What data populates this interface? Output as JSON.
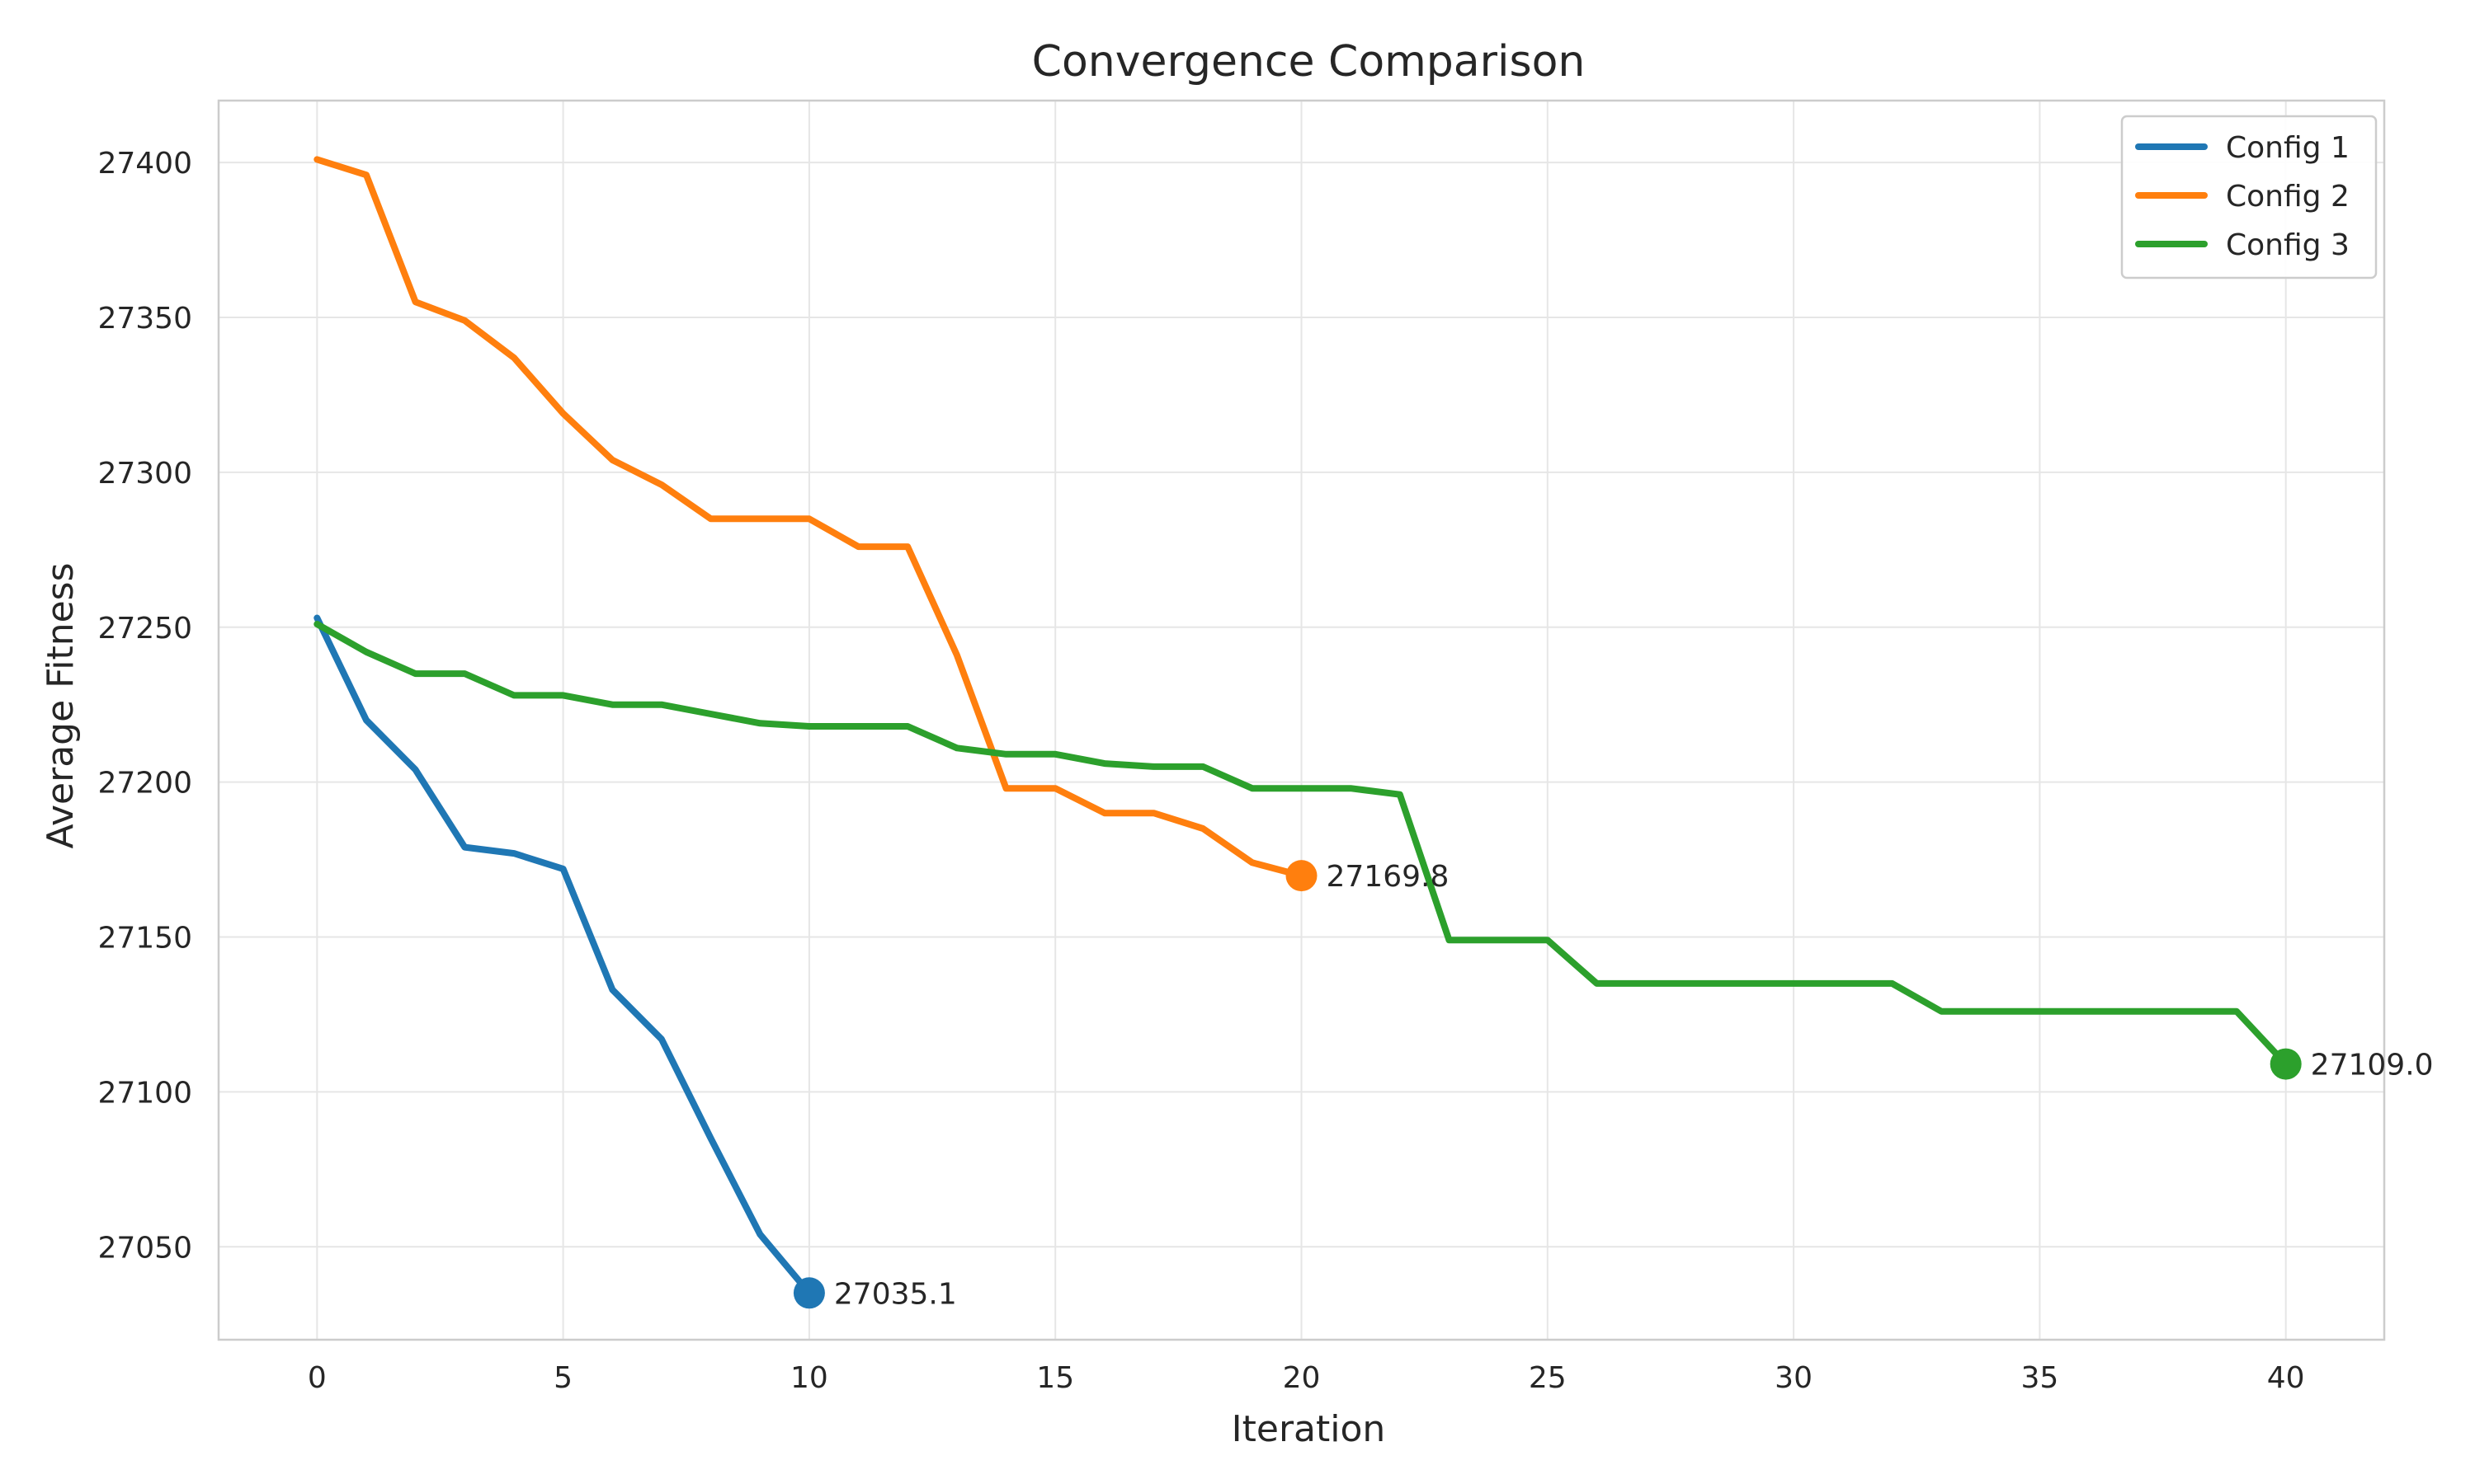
{
  "chart_data": {
    "type": "line",
    "title": "Convergence Comparison",
    "xlabel": "Iteration",
    "ylabel": "Average Fitness",
    "xlim": [
      -2,
      42
    ],
    "ylim": [
      27020,
      27420
    ],
    "xticks": [
      0,
      5,
      10,
      15,
      20,
      25,
      30,
      35,
      40
    ],
    "yticks": [
      27050,
      27100,
      27150,
      27200,
      27250,
      27300,
      27350,
      27400
    ],
    "grid": true,
    "legend_position": "top-right",
    "series": [
      {
        "name": "Config 1",
        "color": "#1f77b4",
        "x": [
          0,
          1,
          2,
          3,
          4,
          5,
          6,
          7,
          8,
          9,
          10
        ],
        "y": [
          27253,
          27220,
          27204,
          27179,
          27177,
          27172,
          27133,
          27117,
          27085,
          27054,
          27035.1
        ],
        "end_label": "27035.1"
      },
      {
        "name": "Config 2",
        "color": "#ff7f0e",
        "x": [
          0,
          1,
          2,
          3,
          4,
          5,
          6,
          7,
          8,
          9,
          10,
          11,
          12,
          13,
          14,
          15,
          16,
          17,
          18,
          19,
          20
        ],
        "y": [
          27401,
          27396,
          27355,
          27349,
          27337,
          27319,
          27304,
          27296,
          27285,
          27285,
          27285,
          27276,
          27276,
          27241,
          27198,
          27198,
          27190,
          27190,
          27185,
          27174,
          27169.8
        ],
        "end_label": "27169.8"
      },
      {
        "name": "Config 3",
        "color": "#2ca02c",
        "x": [
          0,
          1,
          2,
          3,
          4,
          5,
          6,
          7,
          8,
          9,
          10,
          11,
          12,
          13,
          14,
          15,
          16,
          17,
          18,
          19,
          20,
          21,
          22,
          23,
          24,
          25,
          26,
          27,
          28,
          29,
          30,
          31,
          32,
          33,
          34,
          35,
          36,
          37,
          38,
          39,
          40
        ],
        "y": [
          27251,
          27242,
          27235,
          27235,
          27228,
          27228,
          27225,
          27225,
          27222,
          27219,
          27218,
          27218,
          27218,
          27211,
          27209,
          27209,
          27206,
          27205,
          27205,
          27198,
          27198,
          27198,
          27196,
          27149,
          27149,
          27149,
          27135,
          27135,
          27135,
          27135,
          27135,
          27135,
          27135,
          27126,
          27126,
          27126,
          27126,
          27126,
          27126,
          27126,
          27109.0
        ],
        "end_label": "27109.0"
      }
    ]
  }
}
